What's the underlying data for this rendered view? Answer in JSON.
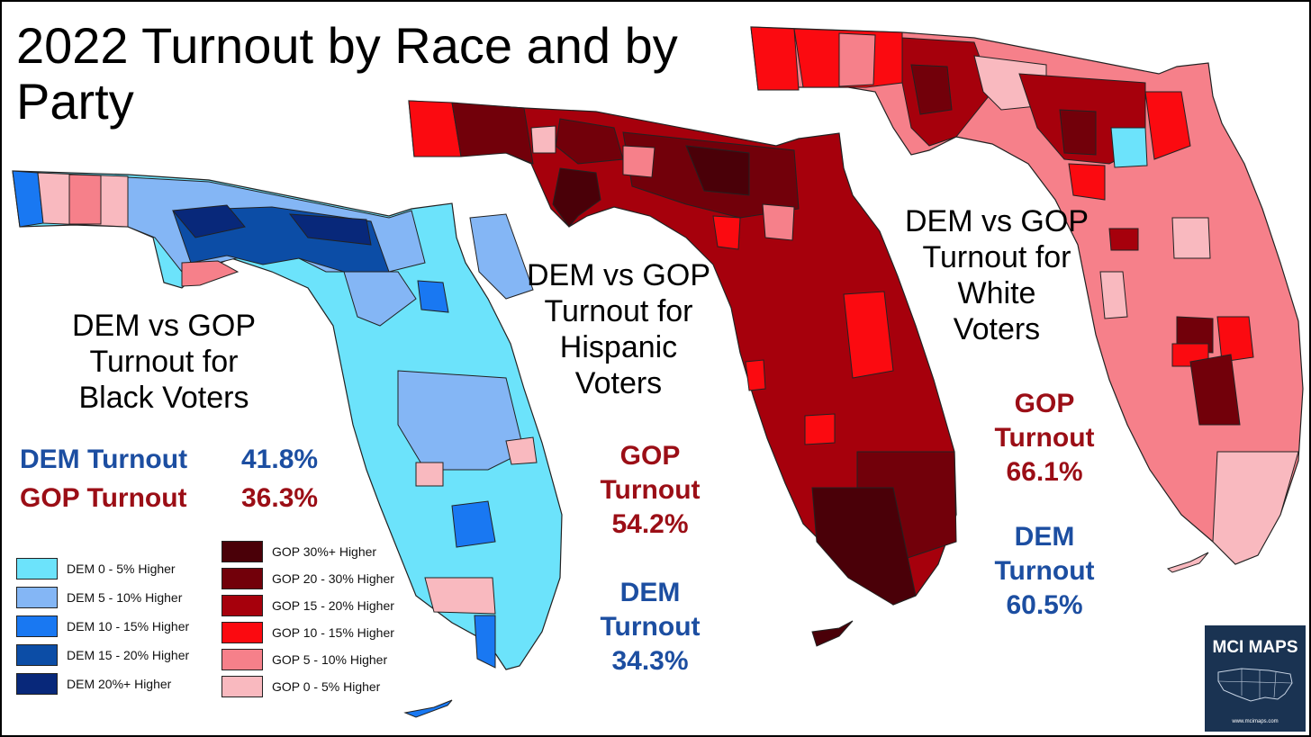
{
  "title": "2022 Turnout by Race and by Party",
  "maps": [
    {
      "caption": [
        "DEM vs GOP",
        "Turnout for",
        "Black Voters"
      ],
      "stats": [
        {
          "label": "DEM Turnout",
          "value": "41.8%"
        },
        {
          "label": "GOP Turnout",
          "value": "36.3%"
        }
      ]
    },
    {
      "caption": [
        "DEM vs GOP",
        "Turnout for",
        "Hispanic",
        "Voters"
      ],
      "stats": [
        {
          "label": "GOP Turnout",
          "value": "54.2%"
        },
        {
          "label": "DEM Turnout",
          "value": "34.3%"
        }
      ]
    },
    {
      "caption": [
        "DEM vs GOP",
        "Turnout for",
        "White",
        "Voters"
      ],
      "stats": [
        {
          "label": "GOP Turnout",
          "value": "66.1%"
        },
        {
          "label": "DEM Turnout",
          "value": "60.5%"
        }
      ]
    }
  ],
  "legend_dem": [
    {
      "label": "DEM 0 - 5% Higher",
      "color": "#6ce3fb"
    },
    {
      "label": "DEM 5 - 10% Higher",
      "color": "#84b6f5"
    },
    {
      "label": "DEM 10 - 15% Higher",
      "color": "#1978f2"
    },
    {
      "label": "DEM 15 - 20% Higher",
      "color": "#0c4da6"
    },
    {
      "label": "DEM 20%+ Higher",
      "color": "#08287a"
    }
  ],
  "legend_gop": [
    {
      "label": "GOP 30%+ Higher",
      "color": "#4a0008"
    },
    {
      "label": "GOP 20 - 30% Higher",
      "color": "#72000a"
    },
    {
      "label": "GOP 15 - 20% Higher",
      "color": "#a6000c"
    },
    {
      "label": "GOP 10 - 15% Higher",
      "color": "#fb0a10"
    },
    {
      "label": "GOP 5 - 10% Higher",
      "color": "#f6808a"
    },
    {
      "label": "GOP 0 - 5% Higher",
      "color": "#f9b9bf"
    }
  ],
  "logo": {
    "text": "MCI MAPS",
    "url": "www.mcimaps.com"
  },
  "colors": {
    "dem_text": "#1c4ea1",
    "gop_text": "#9b0e16"
  }
}
